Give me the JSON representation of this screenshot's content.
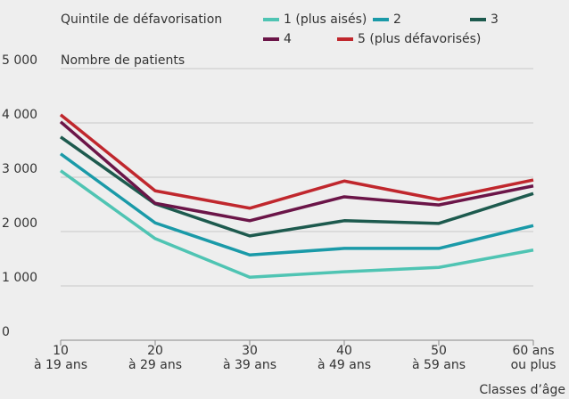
{
  "chart_data": {
    "type": "line",
    "legend_title": "Quintile de défavorisation",
    "y_label": "Nombre de patients",
    "x_label": "Classes d’âge",
    "categories": [
      [
        "10",
        "à 19 ans"
      ],
      [
        "20",
        "à 29 ans"
      ],
      [
        "30",
        "à 39 ans"
      ],
      [
        "40",
        "à 49 ans"
      ],
      [
        "50",
        "à 59 ans"
      ],
      [
        "60 ans",
        "ou plus"
      ]
    ],
    "series": [
      {
        "name": "1 (plus aisés)",
        "color": "#4fc4b3",
        "values": [
          3120,
          1870,
          1160,
          1260,
          1340,
          1660
        ]
      },
      {
        "name": "2",
        "color": "#1a9aa8",
        "values": [
          3430,
          2160,
          1570,
          1690,
          1690,
          2110
        ]
      },
      {
        "name": "3",
        "color": "#1d5a4e",
        "values": [
          3740,
          2510,
          1920,
          2200,
          2150,
          2700
        ]
      },
      {
        "name": "4",
        "color": "#6b1548",
        "values": [
          4020,
          2520,
          2200,
          2640,
          2490,
          2840
        ]
      },
      {
        "name": "5 (plus défavorisés)",
        "color": "#c0272d",
        "values": [
          4150,
          2750,
          2430,
          2930,
          2590,
          2950
        ]
      }
    ],
    "ylim": [
      0,
      5000
    ],
    "yticks": [
      0,
      {
        "value": 1000,
        "label": "1 000"
      },
      {
        "value": 2000,
        "label": "2 000"
      },
      {
        "value": 3000,
        "label": "3 000"
      },
      {
        "value": 4000,
        "label": "4 000"
      },
      {
        "value": 5000,
        "label": "5 000"
      }
    ],
    "grid": true
  }
}
